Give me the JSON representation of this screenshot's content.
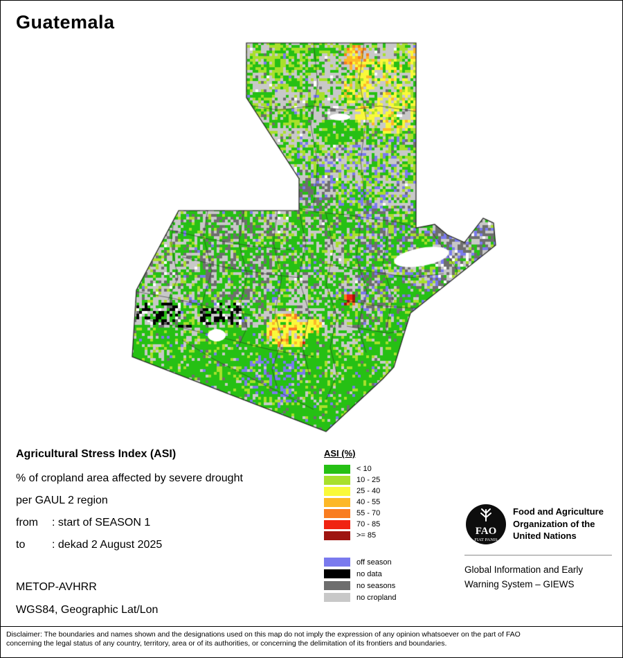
{
  "page": {
    "title": "Guatemala"
  },
  "info": {
    "heading": "Agricultural Stress Index (ASI)",
    "line1": "% of cropland area affected by severe drought",
    "line2": "per GAUL 2 region",
    "from_label": "from",
    "from_value": ": start of SEASON 1",
    "to_label": "to",
    "to_value": ": dekad 2 August 2025",
    "sensor": "METOP-AVHRR",
    "projection": "WGS84, Geographic Lat/Lon"
  },
  "legend": {
    "title": "ASI (%)",
    "classes": [
      {
        "label": "< 10",
        "color": "#26c014"
      },
      {
        "label": "10 - 25",
        "color": "#a8e02c"
      },
      {
        "label": "25 - 40",
        "color": "#f9f93a"
      },
      {
        "label": "40 - 55",
        "color": "#fdb827"
      },
      {
        "label": "55 - 70",
        "color": "#f97d20"
      },
      {
        "label": "70 - 85",
        "color": "#f02311"
      },
      {
        "label": ">= 85",
        "color": "#9e1410"
      }
    ],
    "extra": [
      {
        "label": "off season",
        "color": "#7a7aee"
      },
      {
        "label": "no data",
        "color": "#000000"
      },
      {
        "label": "no seasons",
        "color": "#6e6e6e"
      },
      {
        "label": "no cropland",
        "color": "#c8c8c8"
      }
    ]
  },
  "map": {
    "water_color": "#ffffff",
    "border_color": "#1b1b1b",
    "boundary_color": "#2a2a2a"
  },
  "fao": {
    "logo_text": "FAO",
    "logo_motto": "FIAT PANIS",
    "org_name": "Food and Agriculture Organization of the United Nations",
    "giews": "Global Information and Early Warning System – GIEWS"
  },
  "disclaimer": {
    "line1": "Disclaimer: The boundaries and names shown and the designations used on this map do not imply the expression of any opinion whatsoever on the part of FAO",
    "line2": "concerning the legal status of any country, territory, area or of its authorities, or concerning the delimitation of its frontiers and boundaries."
  }
}
